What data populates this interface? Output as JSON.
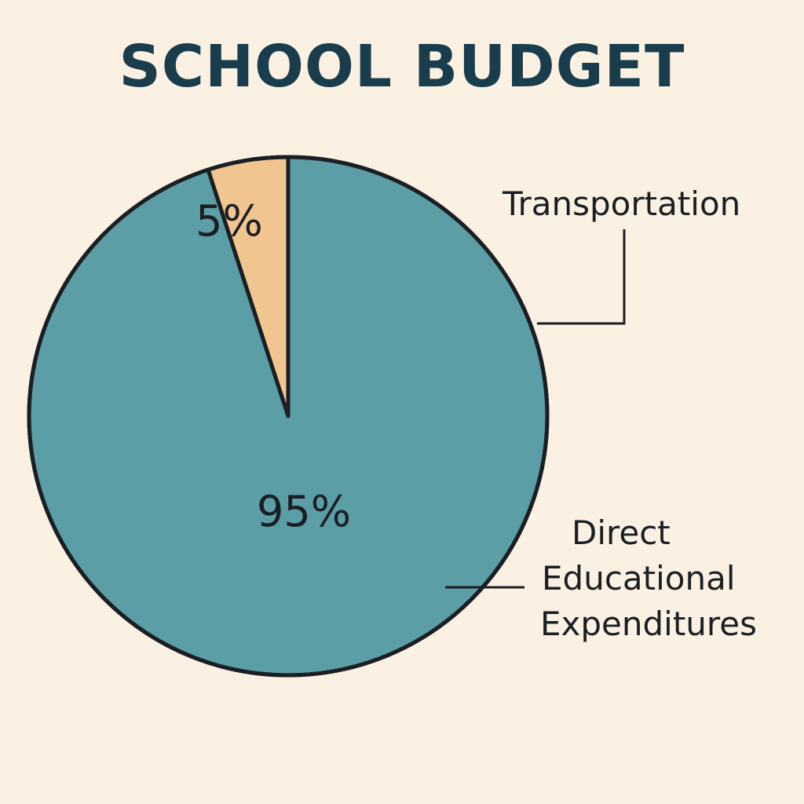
{
  "chart_data": {
    "type": "pie",
    "title": "SCHOOL BUDGET",
    "categories": [
      "Transportation",
      "Direct Educational Expenditures"
    ],
    "values": [
      5,
      95
    ],
    "value_labels": [
      "5%",
      "95%"
    ],
    "legend_lines": [
      [
        "Transportation"
      ],
      [
        "Direct",
        "Educational",
        "Expenditures"
      ]
    ],
    "colors": [
      "#f1c58f",
      "#5b9ea6"
    ],
    "outline_color": "#1b1f23",
    "legend": "callouts-right",
    "grid": false
  }
}
